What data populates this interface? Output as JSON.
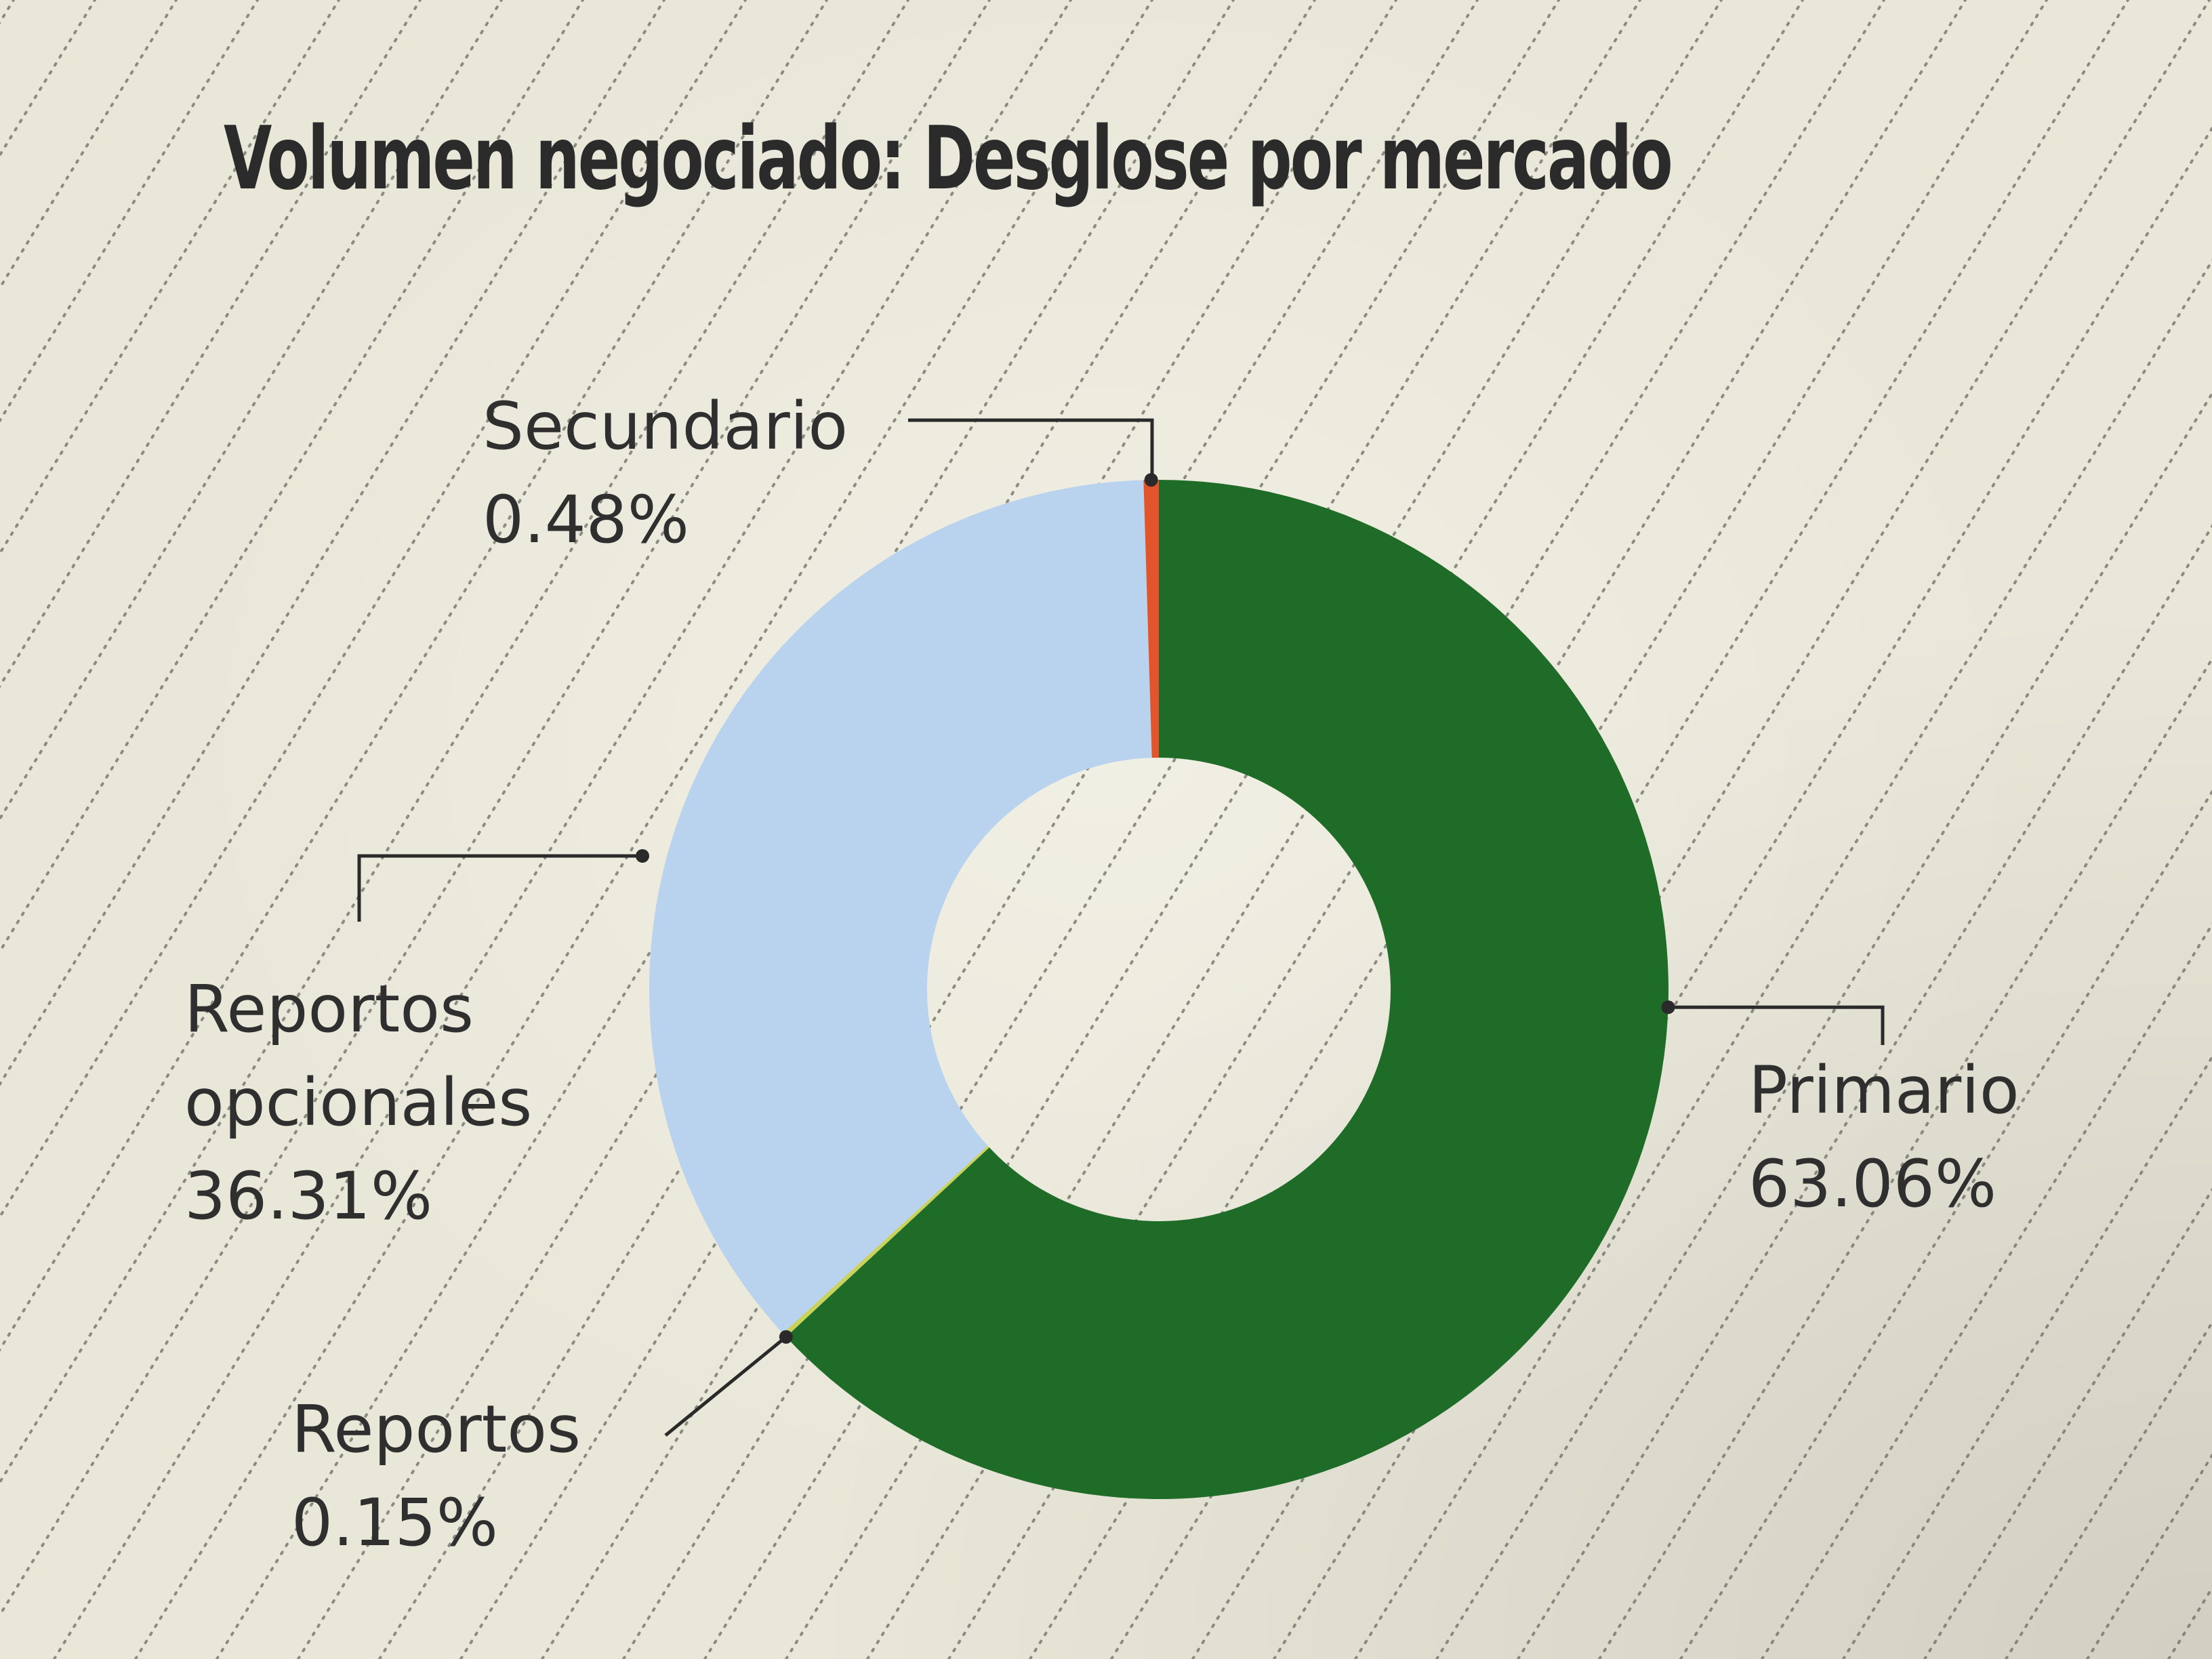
{
  "colors": {
    "background": "#e9e7d8",
    "hatch": "#6d6d66",
    "leader": "#2a2a2a",
    "text": "#2f2f2f"
  },
  "chart_data": {
    "type": "pie",
    "style": "donut",
    "title": "Volumen negociado: Desglose por mercado",
    "start": "top",
    "direction": "clockwise",
    "slices": [
      {
        "label": "Primario",
        "value": 63.06,
        "value_label": "63.06%",
        "color": "#1f6b28"
      },
      {
        "label": "Reportos",
        "value": 0.15,
        "value_label": "0.15%",
        "color": "#c9d25a"
      },
      {
        "label": "Reportos opcionales",
        "label_lines": [
          "Reportos",
          "opcionales"
        ],
        "value": 36.31,
        "value_label": "36.31%",
        "color": "#b9d3ef"
      },
      {
        "label": "Secundario",
        "value": 0.48,
        "value_label": "0.48%",
        "color": "#e2552c"
      }
    ]
  }
}
